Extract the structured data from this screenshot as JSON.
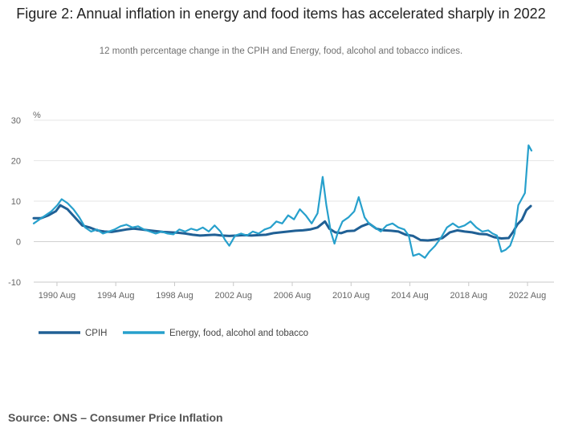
{
  "title": "Figure 2: Annual inflation in energy and food items has accelerated sharply in 2022",
  "subtitle": "12 month percentage change in the CPIH and Energy, food, alcohol and tobacco indices.",
  "source": "Source: ONS – Consumer Price Inflation",
  "colors": {
    "cpih": "#206095",
    "energy_food": "#27a0cc",
    "grid": "#e6e6e6",
    "axis_text": "#666666"
  },
  "chart_data": {
    "type": "line",
    "title": "Figure 2: Annual inflation in energy and food items has accelerated sharply in 2022",
    "subtitle": "12 month percentage change in the CPIH and Energy, food, alcohol and tobacco indices.",
    "ylabel": "%",
    "xlabel": "",
    "ylim": [
      -10,
      30
    ],
    "xlim": [
      1989.0,
      2022.85
    ],
    "yticks": [
      "30",
      "20",
      "10",
      "0",
      "-10"
    ],
    "ytick_values": [
      30,
      20,
      10,
      0,
      -10
    ],
    "xticks": [
      "1990 Aug",
      "1994 Aug",
      "1998 Aug",
      "2002 Aug",
      "2006 Aug",
      "2010 Aug",
      "2014 Aug",
      "2018 Aug",
      "2022 Aug"
    ],
    "xtick_values": [
      1990.58,
      1994.58,
      1998.58,
      2002.58,
      2006.58,
      2010.58,
      2014.58,
      2018.58,
      2022.58
    ],
    "grid": true,
    "legend_position": "bottom-left",
    "series": [
      {
        "name": "CPIH",
        "key": "cpih",
        "x": [
          1989.0,
          1989.5,
          1990.0,
          1990.5,
          1990.8,
          1991.3,
          1991.8,
          1992.3,
          1992.8,
          1993.3,
          1993.8,
          1994.3,
          1994.8,
          1995.3,
          1995.8,
          1996.3,
          1996.8,
          1997.3,
          1997.8,
          1998.3,
          1998.8,
          1999.3,
          1999.8,
          2000.3,
          2000.8,
          2001.3,
          2001.8,
          2002.3,
          2002.8,
          2003.3,
          2003.8,
          2004.3,
          2004.8,
          2005.3,
          2005.8,
          2006.3,
          2006.8,
          2007.3,
          2007.8,
          2008.3,
          2008.8,
          2009.1,
          2009.5,
          2009.9,
          2010.3,
          2010.8,
          2011.3,
          2011.8,
          2012.3,
          2012.8,
          2013.3,
          2013.8,
          2014.3,
          2014.8,
          2015.3,
          2015.8,
          2016.3,
          2016.8,
          2017.3,
          2017.8,
          2018.3,
          2018.8,
          2019.3,
          2019.8,
          2020.3,
          2020.8,
          2021.3,
          2021.6,
          2021.9,
          2022.2,
          2022.5,
          2022.8
        ],
        "values": [
          5.8,
          5.8,
          6.5,
          7.5,
          9.0,
          8.0,
          6.0,
          4.0,
          3.5,
          2.8,
          2.5,
          2.4,
          2.7,
          3.0,
          3.2,
          3.0,
          2.8,
          2.6,
          2.4,
          2.3,
          2.2,
          2.0,
          1.7,
          1.5,
          1.6,
          1.7,
          1.5,
          1.4,
          1.5,
          1.6,
          1.5,
          1.6,
          1.7,
          2.1,
          2.3,
          2.5,
          2.7,
          2.8,
          3.0,
          3.5,
          5.0,
          3.2,
          2.3,
          2.1,
          2.6,
          2.7,
          3.8,
          4.5,
          3.2,
          2.8,
          2.7,
          2.5,
          1.7,
          1.4,
          0.4,
          0.3,
          0.5,
          0.9,
          2.3,
          2.8,
          2.5,
          2.3,
          1.9,
          1.8,
          1.1,
          0.8,
          0.9,
          2.4,
          4.3,
          5.4,
          7.8,
          8.8
        ]
      },
      {
        "name": "Energy, food, alcohol and tobacco",
        "key": "energy_food",
        "x": [
          1989.0,
          1989.4,
          1989.8,
          1990.2,
          1990.6,
          1990.9,
          1991.3,
          1991.7,
          1992.1,
          1992.5,
          1992.9,
          1993.3,
          1993.7,
          1994.1,
          1994.5,
          1994.9,
          1995.3,
          1995.7,
          1996.1,
          1996.5,
          1996.9,
          1997.3,
          1997.7,
          1998.1,
          1998.5,
          1998.9,
          1999.3,
          1999.7,
          2000.1,
          2000.5,
          2000.9,
          2001.3,
          2001.7,
          2002.0,
          2002.3,
          2002.7,
          2003.1,
          2003.5,
          2003.9,
          2004.3,
          2004.7,
          2005.1,
          2005.5,
          2005.9,
          2006.3,
          2006.7,
          2007.1,
          2007.5,
          2007.9,
          2008.3,
          2008.65,
          2008.9,
          2009.2,
          2009.45,
          2009.7,
          2010.0,
          2010.4,
          2010.8,
          2011.1,
          2011.5,
          2011.8,
          2012.2,
          2012.6,
          2013.0,
          2013.4,
          2013.8,
          2014.2,
          2014.5,
          2014.8,
          2015.2,
          2015.6,
          2015.9,
          2016.3,
          2016.7,
          2017.1,
          2017.5,
          2017.9,
          2018.3,
          2018.7,
          2019.1,
          2019.5,
          2019.9,
          2020.2,
          2020.5,
          2020.8,
          2021.1,
          2021.4,
          2021.7,
          2021.95,
          2022.1,
          2022.4,
          2022.65,
          2022.85
        ],
        "values": [
          4.5,
          5.5,
          6.5,
          7.5,
          9.0,
          10.5,
          9.5,
          8.0,
          6.0,
          3.5,
          2.5,
          3.0,
          2.0,
          2.5,
          3.0,
          3.8,
          4.2,
          3.5,
          3.8,
          3.0,
          2.5,
          2.0,
          2.5,
          2.0,
          1.8,
          3.0,
          2.5,
          3.2,
          2.8,
          3.5,
          2.5,
          4.0,
          2.5,
          0.5,
          -1.0,
          1.5,
          2.0,
          1.5,
          2.5,
          2.0,
          3.0,
          3.5,
          5.0,
          4.5,
          6.5,
          5.5,
          8.0,
          6.5,
          4.5,
          7.0,
          16.0,
          9.0,
          2.5,
          -0.5,
          2.5,
          5.0,
          6.0,
          7.5,
          11.0,
          6.0,
          4.5,
          3.5,
          2.5,
          4.0,
          4.5,
          3.5,
          3.0,
          1.5,
          -3.5,
          -3.0,
          -4.0,
          -2.5,
          -1.0,
          1.0,
          3.5,
          4.5,
          3.5,
          4.0,
          5.0,
          3.5,
          2.5,
          2.8,
          2.0,
          1.5,
          -2.5,
          -2.0,
          -1.0,
          2.0,
          9.0,
          10.0,
          12.0,
          23.8,
          22.5
        ]
      }
    ]
  }
}
